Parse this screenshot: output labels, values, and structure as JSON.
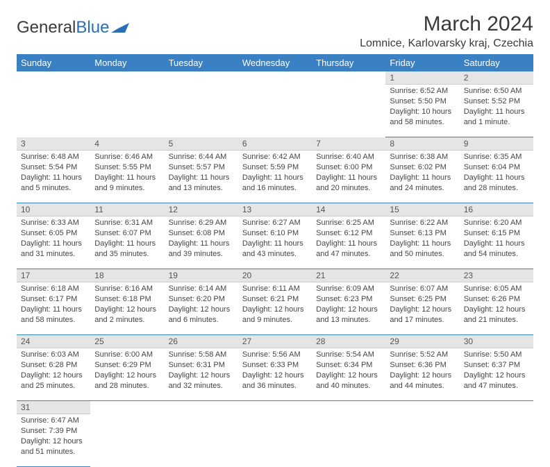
{
  "logo": {
    "text1": "General",
    "text2": "Blue"
  },
  "title": "March 2024",
  "location": "Lomnice, Karlovarsky kraj, Czechia",
  "colors": {
    "header_bg": "#3a81c4",
    "header_fg": "#ffffff",
    "daynum_bg": "#e5e5e5",
    "row_border": "#3a81c4",
    "text": "#444444"
  },
  "weekdays": [
    "Sunday",
    "Monday",
    "Tuesday",
    "Wednesday",
    "Thursday",
    "Friday",
    "Saturday"
  ],
  "weeks": [
    [
      null,
      null,
      null,
      null,
      null,
      {
        "n": "1",
        "sunrise": "Sunrise: 6:52 AM",
        "sunset": "Sunset: 5:50 PM",
        "day1": "Daylight: 10 hours",
        "day2": "and 58 minutes."
      },
      {
        "n": "2",
        "sunrise": "Sunrise: 6:50 AM",
        "sunset": "Sunset: 5:52 PM",
        "day1": "Daylight: 11 hours",
        "day2": "and 1 minute."
      }
    ],
    [
      {
        "n": "3",
        "sunrise": "Sunrise: 6:48 AM",
        "sunset": "Sunset: 5:54 PM",
        "day1": "Daylight: 11 hours",
        "day2": "and 5 minutes."
      },
      {
        "n": "4",
        "sunrise": "Sunrise: 6:46 AM",
        "sunset": "Sunset: 5:55 PM",
        "day1": "Daylight: 11 hours",
        "day2": "and 9 minutes."
      },
      {
        "n": "5",
        "sunrise": "Sunrise: 6:44 AM",
        "sunset": "Sunset: 5:57 PM",
        "day1": "Daylight: 11 hours",
        "day2": "and 13 minutes."
      },
      {
        "n": "6",
        "sunrise": "Sunrise: 6:42 AM",
        "sunset": "Sunset: 5:59 PM",
        "day1": "Daylight: 11 hours",
        "day2": "and 16 minutes."
      },
      {
        "n": "7",
        "sunrise": "Sunrise: 6:40 AM",
        "sunset": "Sunset: 6:00 PM",
        "day1": "Daylight: 11 hours",
        "day2": "and 20 minutes."
      },
      {
        "n": "8",
        "sunrise": "Sunrise: 6:38 AM",
        "sunset": "Sunset: 6:02 PM",
        "day1": "Daylight: 11 hours",
        "day2": "and 24 minutes."
      },
      {
        "n": "9",
        "sunrise": "Sunrise: 6:35 AM",
        "sunset": "Sunset: 6:04 PM",
        "day1": "Daylight: 11 hours",
        "day2": "and 28 minutes."
      }
    ],
    [
      {
        "n": "10",
        "sunrise": "Sunrise: 6:33 AM",
        "sunset": "Sunset: 6:05 PM",
        "day1": "Daylight: 11 hours",
        "day2": "and 31 minutes."
      },
      {
        "n": "11",
        "sunrise": "Sunrise: 6:31 AM",
        "sunset": "Sunset: 6:07 PM",
        "day1": "Daylight: 11 hours",
        "day2": "and 35 minutes."
      },
      {
        "n": "12",
        "sunrise": "Sunrise: 6:29 AM",
        "sunset": "Sunset: 6:08 PM",
        "day1": "Daylight: 11 hours",
        "day2": "and 39 minutes."
      },
      {
        "n": "13",
        "sunrise": "Sunrise: 6:27 AM",
        "sunset": "Sunset: 6:10 PM",
        "day1": "Daylight: 11 hours",
        "day2": "and 43 minutes."
      },
      {
        "n": "14",
        "sunrise": "Sunrise: 6:25 AM",
        "sunset": "Sunset: 6:12 PM",
        "day1": "Daylight: 11 hours",
        "day2": "and 47 minutes."
      },
      {
        "n": "15",
        "sunrise": "Sunrise: 6:22 AM",
        "sunset": "Sunset: 6:13 PM",
        "day1": "Daylight: 11 hours",
        "day2": "and 50 minutes."
      },
      {
        "n": "16",
        "sunrise": "Sunrise: 6:20 AM",
        "sunset": "Sunset: 6:15 PM",
        "day1": "Daylight: 11 hours",
        "day2": "and 54 minutes."
      }
    ],
    [
      {
        "n": "17",
        "sunrise": "Sunrise: 6:18 AM",
        "sunset": "Sunset: 6:17 PM",
        "day1": "Daylight: 11 hours",
        "day2": "and 58 minutes."
      },
      {
        "n": "18",
        "sunrise": "Sunrise: 6:16 AM",
        "sunset": "Sunset: 6:18 PM",
        "day1": "Daylight: 12 hours",
        "day2": "and 2 minutes."
      },
      {
        "n": "19",
        "sunrise": "Sunrise: 6:14 AM",
        "sunset": "Sunset: 6:20 PM",
        "day1": "Daylight: 12 hours",
        "day2": "and 6 minutes."
      },
      {
        "n": "20",
        "sunrise": "Sunrise: 6:11 AM",
        "sunset": "Sunset: 6:21 PM",
        "day1": "Daylight: 12 hours",
        "day2": "and 9 minutes."
      },
      {
        "n": "21",
        "sunrise": "Sunrise: 6:09 AM",
        "sunset": "Sunset: 6:23 PM",
        "day1": "Daylight: 12 hours",
        "day2": "and 13 minutes."
      },
      {
        "n": "22",
        "sunrise": "Sunrise: 6:07 AM",
        "sunset": "Sunset: 6:25 PM",
        "day1": "Daylight: 12 hours",
        "day2": "and 17 minutes."
      },
      {
        "n": "23",
        "sunrise": "Sunrise: 6:05 AM",
        "sunset": "Sunset: 6:26 PM",
        "day1": "Daylight: 12 hours",
        "day2": "and 21 minutes."
      }
    ],
    [
      {
        "n": "24",
        "sunrise": "Sunrise: 6:03 AM",
        "sunset": "Sunset: 6:28 PM",
        "day1": "Daylight: 12 hours",
        "day2": "and 25 minutes."
      },
      {
        "n": "25",
        "sunrise": "Sunrise: 6:00 AM",
        "sunset": "Sunset: 6:29 PM",
        "day1": "Daylight: 12 hours",
        "day2": "and 28 minutes."
      },
      {
        "n": "26",
        "sunrise": "Sunrise: 5:58 AM",
        "sunset": "Sunset: 6:31 PM",
        "day1": "Daylight: 12 hours",
        "day2": "and 32 minutes."
      },
      {
        "n": "27",
        "sunrise": "Sunrise: 5:56 AM",
        "sunset": "Sunset: 6:33 PM",
        "day1": "Daylight: 12 hours",
        "day2": "and 36 minutes."
      },
      {
        "n": "28",
        "sunrise": "Sunrise: 5:54 AM",
        "sunset": "Sunset: 6:34 PM",
        "day1": "Daylight: 12 hours",
        "day2": "and 40 minutes."
      },
      {
        "n": "29",
        "sunrise": "Sunrise: 5:52 AM",
        "sunset": "Sunset: 6:36 PM",
        "day1": "Daylight: 12 hours",
        "day2": "and 44 minutes."
      },
      {
        "n": "30",
        "sunrise": "Sunrise: 5:50 AM",
        "sunset": "Sunset: 6:37 PM",
        "day1": "Daylight: 12 hours",
        "day2": "and 47 minutes."
      }
    ],
    [
      {
        "n": "31",
        "sunrise": "Sunrise: 6:47 AM",
        "sunset": "Sunset: 7:39 PM",
        "day1": "Daylight: 12 hours",
        "day2": "and 51 minutes."
      },
      null,
      null,
      null,
      null,
      null,
      null
    ]
  ]
}
